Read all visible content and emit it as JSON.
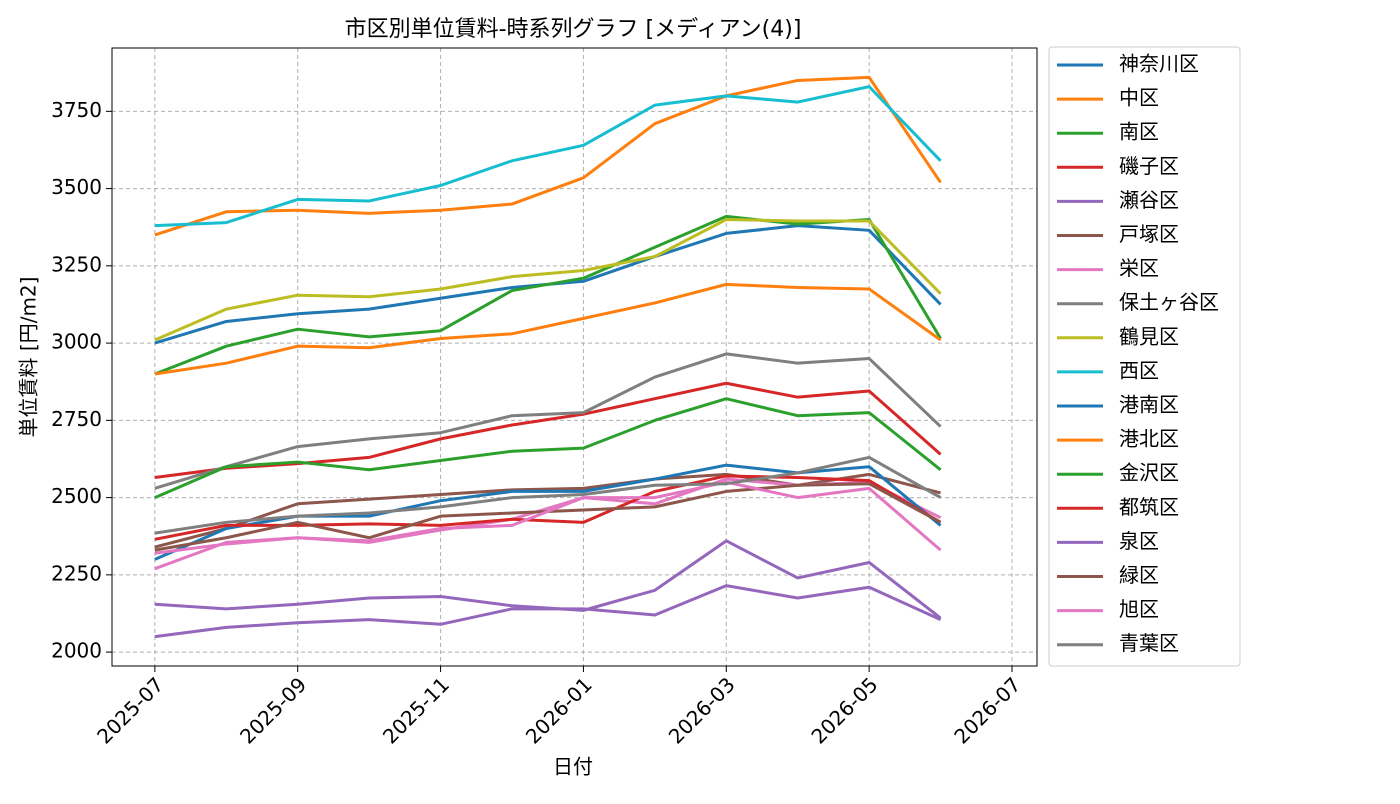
{
  "chart_data": {
    "type": "line",
    "title": "市区別単位賃料-時系列グラフ [メディアン(4)]",
    "x_label": "日付",
    "y_label": "単位賃料 [円/m2]",
    "x": [
      "2025-07",
      "2025-08",
      "2025-09",
      "2025-10",
      "2025-11",
      "2025-12",
      "2026-01",
      "2026-02",
      "2026-03",
      "2026-04",
      "2026-05",
      "2026-06"
    ],
    "xticks": [
      "2025-07",
      "2025-09",
      "2025-11",
      "2026-01",
      "2026-03",
      "2026-05",
      "2026-07"
    ],
    "ylim": [
      1955,
      3955
    ],
    "yticks": [
      2000,
      2250,
      2500,
      2750,
      3000,
      3250,
      3500,
      3750
    ],
    "grid": true,
    "legend": "outside-right",
    "series": [
      {
        "name": "神奈川区",
        "color": "#1f77b4",
        "values": [
          3000,
          3070,
          3095,
          3110,
          3145,
          3180,
          3200,
          3280,
          3355,
          3380,
          3365,
          3125
        ]
      },
      {
        "name": "中区",
        "color": "#ff7f0e",
        "values": [
          3350,
          3425,
          3430,
          3420,
          3430,
          3450,
          3535,
          3710,
          3800,
          3850,
          3860,
          3520
        ]
      },
      {
        "name": "南区",
        "color": "#2ca02c",
        "values": [
          2900,
          2990,
          3045,
          3020,
          3040,
          3170,
          3210,
          3310,
          3410,
          3385,
          3400,
          3015
        ]
      },
      {
        "name": "磯子区",
        "color": "#d62728",
        "values": [
          2565,
          2595,
          2610,
          2630,
          2690,
          2735,
          2770,
          2820,
          2870,
          2825,
          2845,
          2640
        ]
      },
      {
        "name": "瀬谷区",
        "color": "#9467bd",
        "values": [
          2050,
          2080,
          2095,
          2105,
          2090,
          2140,
          2140,
          2120,
          2215,
          2175,
          2210,
          2105
        ]
      },
      {
        "name": "戸塚区",
        "color": "#8c564b",
        "values": [
          2340,
          2400,
          2480,
          2495,
          2510,
          2525,
          2530,
          2560,
          2575,
          2540,
          2575,
          2515
        ]
      },
      {
        "name": "栄区",
        "color": "#e377c2",
        "values": [
          2270,
          2355,
          2370,
          2355,
          2395,
          2430,
          2500,
          2480,
          2560,
          2540,
          2550,
          2435
        ]
      },
      {
        "name": "保土ヶ谷区",
        "color": "#7f7f7f",
        "values": [
          2530,
          2600,
          2665,
          2690,
          2710,
          2765,
          2775,
          2890,
          2965,
          2935,
          2950,
          2730
        ]
      },
      {
        "name": "鶴見区",
        "color": "#bcbd22",
        "values": [
          3010,
          3110,
          3155,
          3150,
          3175,
          3215,
          3235,
          3280,
          3400,
          3395,
          3395,
          3160
        ]
      },
      {
        "name": "西区",
        "color": "#17becf",
        "values": [
          3380,
          3390,
          3465,
          3460,
          3510,
          3590,
          3640,
          3770,
          3800,
          3780,
          3830,
          3590
        ]
      },
      {
        "name": "港南区",
        "color": "#1f77b4",
        "values": [
          2300,
          2400,
          2440,
          2440,
          2490,
          2520,
          2520,
          2560,
          2605,
          2580,
          2600,
          2410
        ]
      },
      {
        "name": "港北区",
        "color": "#ff7f0e",
        "values": [
          2900,
          2935,
          2990,
          2985,
          3015,
          3030,
          3080,
          3130,
          3190,
          3180,
          3175,
          3010
        ]
      },
      {
        "name": "金沢区",
        "color": "#2ca02c",
        "values": [
          2500,
          2600,
          2615,
          2590,
          2620,
          2650,
          2660,
          2750,
          2820,
          2765,
          2775,
          2590
        ]
      },
      {
        "name": "都筑区",
        "color": "#d62728",
        "values": [
          2365,
          2410,
          2410,
          2415,
          2410,
          2430,
          2420,
          2520,
          2570,
          2565,
          2555,
          2420
        ]
      },
      {
        "name": "泉区",
        "color": "#9467bd",
        "values": [
          2155,
          2140,
          2155,
          2175,
          2180,
          2150,
          2135,
          2200,
          2360,
          2240,
          2290,
          2110
        ]
      },
      {
        "name": "緑区",
        "color": "#8c564b",
        "values": [
          2330,
          2370,
          2420,
          2370,
          2440,
          2450,
          2460,
          2470,
          2520,
          2540,
          2545,
          2420
        ]
      },
      {
        "name": "旭区",
        "color": "#e377c2",
        "values": [
          2320,
          2350,
          2370,
          2360,
          2400,
          2410,
          2500,
          2500,
          2550,
          2500,
          2530,
          2330
        ]
      },
      {
        "name": "青葉区",
        "color": "#7f7f7f",
        "values": [
          2385,
          2420,
          2440,
          2450,
          2470,
          2500,
          2510,
          2540,
          2545,
          2580,
          2630,
          2500
        ]
      }
    ]
  }
}
